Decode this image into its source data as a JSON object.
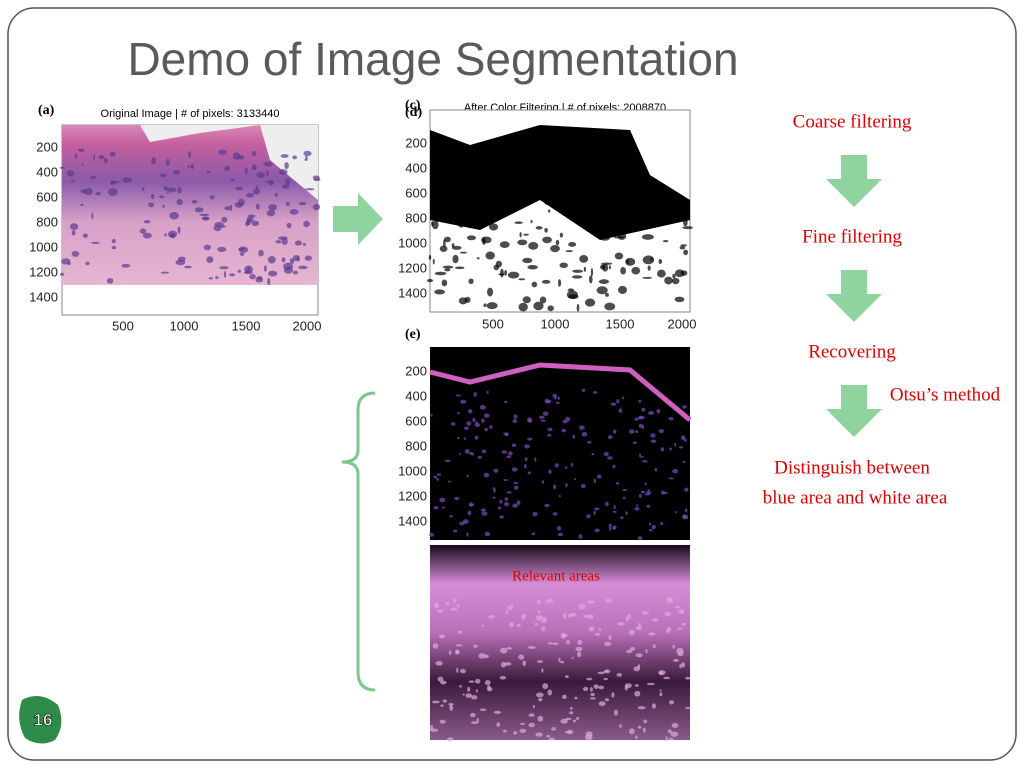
{
  "title": "Demo of Image Segmentation",
  "panels": [
    {
      "label": "(a)",
      "caption": "Original Image | # of pixels: 3133440",
      "yticks": [
        200,
        400,
        600,
        800,
        1000,
        1200,
        1400
      ],
      "xticks": [
        500,
        1000,
        1500,
        2000
      ]
    },
    {
      "label": "(c)",
      "label2": "(d)",
      "caption": "After Color Filtering | # of pixels: 2008870",
      "yticks": [
        200,
        400,
        600,
        800,
        1000,
        1200,
        1400
      ],
      "xticks": [
        500,
        1000,
        1500,
        2000
      ]
    },
    {
      "label": "(e)",
      "yticks": [
        200,
        400,
        600,
        800,
        1000,
        1200,
        1400
      ],
      "annotation": "Relevant areas"
    }
  ],
  "flow": {
    "steps": [
      "Coarse filtering",
      "Fine filtering",
      "Recovering"
    ],
    "method": "Otsu’s method",
    "result": [
      "Distinguish between",
      "blue area and white area"
    ]
  },
  "page_number": "16"
}
